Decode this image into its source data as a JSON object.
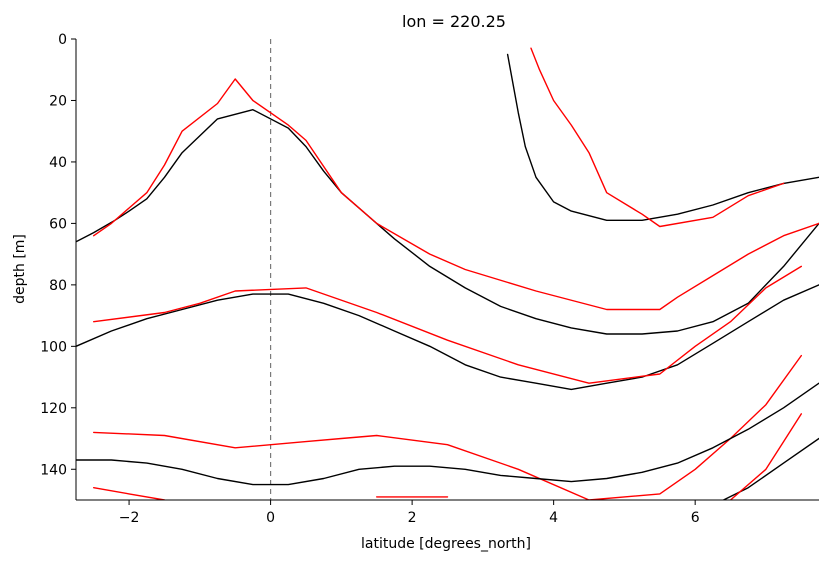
{
  "chart_data": {
    "type": "line",
    "title": "lon = 220.25",
    "xlabel": "latitude [degrees_north]",
    "ylabel": "depth [m]",
    "xlim": [
      -2.75,
      7.75
    ],
    "ylim": [
      150,
      0
    ],
    "y_inverted": true,
    "xticks": [
      -2,
      0,
      2,
      4,
      6
    ],
    "xtick_labels": [
      "−2",
      "0",
      "2",
      "4",
      "6"
    ],
    "yticks": [
      0,
      20,
      40,
      60,
      80,
      100,
      120,
      140
    ],
    "ytick_labels": [
      "0",
      "20",
      "40",
      "60",
      "80",
      "100",
      "120",
      "140"
    ],
    "reference_line": {
      "x": 0,
      "style": "dashed",
      "color": "#808080"
    },
    "grid": false,
    "legend": "none",
    "colors": {
      "black": "#000000",
      "red": "#ff0000"
    },
    "series": [
      {
        "color": "#000000",
        "points": [
          [
            -2.75,
            66
          ],
          [
            -2.5,
            63
          ],
          [
            -2.2,
            59
          ],
          [
            -2.0,
            56
          ],
          [
            -1.75,
            52
          ],
          [
            -1.5,
            45
          ],
          [
            -1.25,
            37
          ],
          [
            -0.75,
            26
          ],
          [
            -0.25,
            23
          ],
          [
            0.25,
            29
          ],
          [
            0.5,
            35
          ],
          [
            0.75,
            43
          ],
          [
            1.0,
            50
          ],
          [
            1.25,
            55
          ],
          [
            1.75,
            65
          ],
          [
            2.25,
            74
          ],
          [
            2.75,
            81
          ],
          [
            3.25,
            87
          ],
          [
            3.75,
            91
          ],
          [
            4.25,
            94
          ],
          [
            4.75,
            96
          ],
          [
            5.25,
            96
          ],
          [
            5.75,
            95
          ],
          [
            6.25,
            92
          ],
          [
            6.75,
            86
          ],
          [
            7.25,
            74
          ],
          [
            7.75,
            60
          ]
        ]
      },
      {
        "color": "#ff0000",
        "points": [
          [
            -2.5,
            64
          ],
          [
            -2.25,
            60
          ],
          [
            -2.0,
            55
          ],
          [
            -1.75,
            50
          ],
          [
            -1.5,
            41
          ],
          [
            -1.25,
            30
          ],
          [
            -0.75,
            21
          ],
          [
            -0.5,
            13
          ],
          [
            -0.25,
            20
          ],
          [
            0.25,
            28
          ],
          [
            0.5,
            33
          ],
          [
            1.0,
            50
          ],
          [
            1.5,
            60
          ],
          [
            2.25,
            70
          ],
          [
            2.75,
            75
          ],
          [
            3.75,
            82
          ],
          [
            4.75,
            88
          ],
          [
            5.5,
            88
          ],
          [
            5.75,
            84
          ],
          [
            6.25,
            77
          ],
          [
            6.75,
            70
          ],
          [
            7.25,
            64
          ],
          [
            7.75,
            60
          ]
        ]
      },
      {
        "color": "#000000",
        "points": [
          [
            3.35,
            5
          ],
          [
            3.5,
            24
          ],
          [
            3.6,
            35
          ],
          [
            3.75,
            45
          ],
          [
            4.0,
            53
          ],
          [
            4.25,
            56
          ],
          [
            4.75,
            59
          ],
          [
            5.25,
            59
          ],
          [
            5.75,
            57
          ],
          [
            6.25,
            54
          ],
          [
            6.75,
            50
          ],
          [
            7.25,
            47
          ],
          [
            7.75,
            45
          ]
        ]
      },
      {
        "color": "#ff0000",
        "points": [
          [
            3.68,
            3
          ],
          [
            3.8,
            10
          ],
          [
            4.0,
            20
          ],
          [
            4.25,
            28
          ],
          [
            4.5,
            37
          ],
          [
            4.75,
            50
          ],
          [
            5.25,
            57
          ],
          [
            5.5,
            61
          ],
          [
            6.25,
            58
          ],
          [
            6.75,
            51
          ],
          [
            7.25,
            47
          ]
        ]
      },
      {
        "color": "#000000",
        "points": [
          [
            -2.75,
            100
          ],
          [
            -2.25,
            95
          ],
          [
            -1.75,
            91
          ],
          [
            -1.25,
            88
          ],
          [
            -0.75,
            85
          ],
          [
            -0.25,
            83
          ],
          [
            0.25,
            83
          ],
          [
            0.75,
            86
          ],
          [
            1.25,
            90
          ],
          [
            1.75,
            95
          ],
          [
            2.25,
            100
          ],
          [
            2.75,
            106
          ],
          [
            3.25,
            110
          ],
          [
            3.75,
            112
          ],
          [
            4.25,
            114
          ],
          [
            4.75,
            112
          ],
          [
            5.25,
            110
          ],
          [
            5.75,
            106
          ],
          [
            6.25,
            99
          ],
          [
            6.75,
            92
          ],
          [
            7.25,
            85
          ],
          [
            7.75,
            80
          ]
        ]
      },
      {
        "color": "#ff0000",
        "points": [
          [
            -2.5,
            92
          ],
          [
            -1.5,
            89
          ],
          [
            -1.0,
            86
          ],
          [
            -0.5,
            82
          ],
          [
            0.5,
            81
          ],
          [
            1.5,
            89
          ],
          [
            2.5,
            98
          ],
          [
            3.5,
            106
          ],
          [
            4.5,
            112
          ],
          [
            5.5,
            109
          ],
          [
            6.0,
            100
          ],
          [
            6.5,
            92
          ],
          [
            7.0,
            81
          ],
          [
            7.5,
            74
          ]
        ]
      },
      {
        "color": "#ff0000",
        "points": [
          [
            -2.5,
            128
          ],
          [
            -1.5,
            129
          ],
          [
            -0.5,
            133
          ],
          [
            0.5,
            131
          ],
          [
            1.0,
            130
          ],
          [
            1.5,
            129
          ],
          [
            2.5,
            132
          ],
          [
            3.5,
            140
          ],
          [
            4.5,
            150
          ],
          [
            5.5,
            148
          ],
          [
            6.0,
            140
          ],
          [
            6.5,
            130
          ],
          [
            7.0,
            119
          ],
          [
            7.5,
            103
          ]
        ]
      },
      {
        "color": "#000000",
        "points": [
          [
            -2.75,
            137
          ],
          [
            -2.25,
            137
          ],
          [
            -1.75,
            138
          ],
          [
            -1.25,
            140
          ],
          [
            -0.75,
            143
          ],
          [
            -0.25,
            145
          ],
          [
            0.25,
            145
          ],
          [
            0.75,
            143
          ],
          [
            1.25,
            140
          ],
          [
            1.75,
            139
          ],
          [
            2.25,
            139
          ],
          [
            2.75,
            140
          ],
          [
            3.25,
            142
          ],
          [
            3.75,
            143
          ],
          [
            4.25,
            144
          ],
          [
            4.75,
            143
          ],
          [
            5.25,
            141
          ],
          [
            5.75,
            138
          ],
          [
            6.25,
            133
          ],
          [
            6.75,
            127
          ],
          [
            7.25,
            120
          ],
          [
            7.75,
            112
          ]
        ]
      },
      {
        "color": "#ff0000",
        "points": [
          [
            -2.5,
            146
          ],
          [
            -2.0,
            148
          ],
          [
            -1.5,
            150
          ]
        ]
      },
      {
        "color": "#ff0000",
        "points": [
          [
            1.5,
            149
          ],
          [
            2.0,
            149
          ],
          [
            2.5,
            149
          ]
        ]
      },
      {
        "color": "#000000",
        "points": [
          [
            6.4,
            150
          ],
          [
            6.75,
            146
          ],
          [
            7.25,
            138
          ],
          [
            7.75,
            130
          ]
        ]
      },
      {
        "color": "#ff0000",
        "points": [
          [
            6.5,
            150
          ],
          [
            7.0,
            140
          ],
          [
            7.25,
            131
          ],
          [
            7.5,
            122
          ]
        ]
      }
    ]
  }
}
